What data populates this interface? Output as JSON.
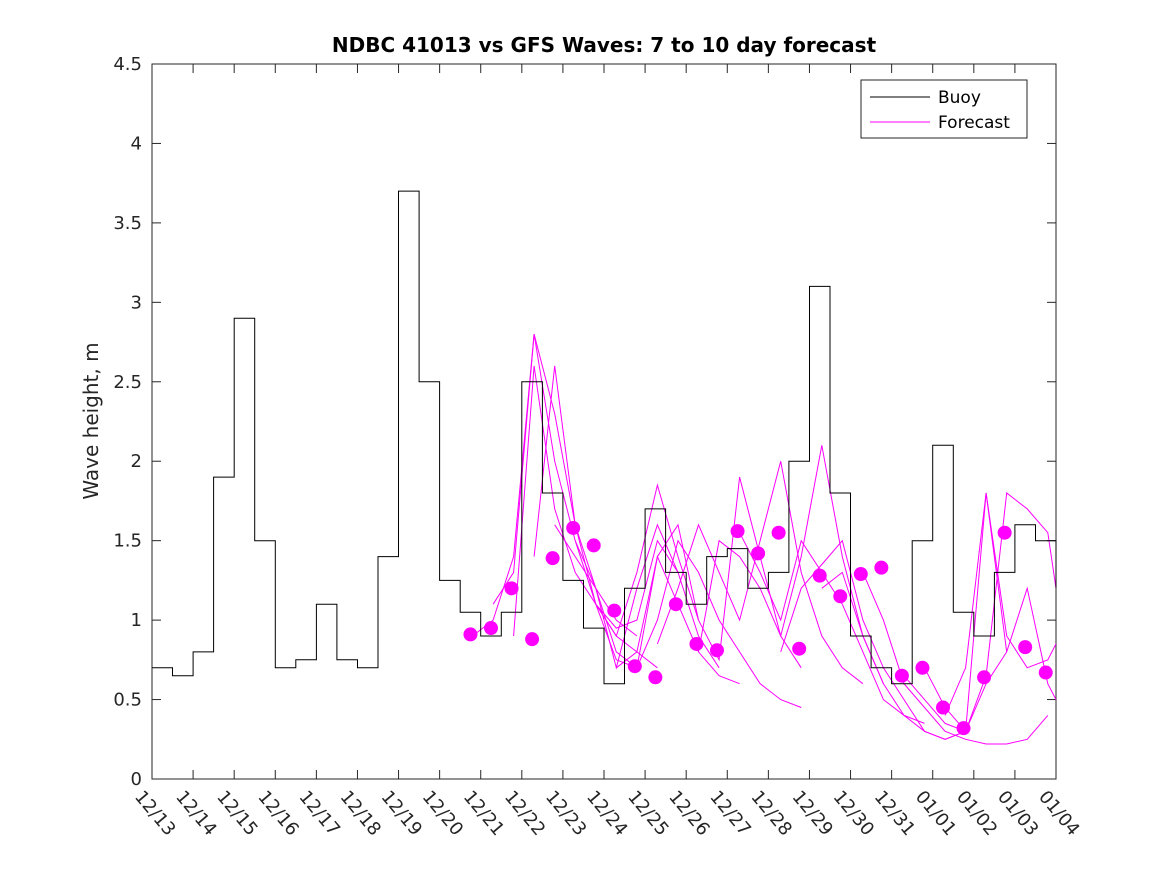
{
  "chart_data": {
    "type": "line",
    "title": "NDBC 41013 vs GFS Waves: 7 to 10 day forecast",
    "xlabel": "",
    "ylabel": "Wave height, m",
    "xlim": [
      0,
      22
    ],
    "ylim": [
      0,
      4.5
    ],
    "yticks": [
      0,
      0.5,
      1,
      1.5,
      2,
      2.5,
      3,
      3.5,
      4,
      4.5
    ],
    "ytick_labels": [
      "0",
      "0.5",
      "1",
      "1.5",
      "2",
      "2.5",
      "3",
      "3.5",
      "4",
      "4.5"
    ],
    "xtick_labels": [
      "12/13",
      "12/14",
      "12/15",
      "12/16",
      "12/17",
      "12/18",
      "12/19",
      "12/20",
      "12/21",
      "12/22",
      "12/23",
      "12/24",
      "12/25",
      "12/26",
      "12/27",
      "12/28",
      "12/29",
      "12/30",
      "12/31",
      "01/01",
      "01/02",
      "01/03",
      "01/04"
    ],
    "legend": {
      "position": "top-right",
      "entries": [
        {
          "label": "Buoy",
          "color": "#000000"
        },
        {
          "label": "Forecast",
          "color": "#ff00ff"
        }
      ]
    },
    "buoy": {
      "name": "Buoy",
      "color": "#000000",
      "x": [
        0,
        0.5,
        1.0,
        1.5,
        2.0,
        2.5,
        3.0,
        3.5,
        4.0,
        4.5,
        5.0,
        5.5,
        6.0,
        6.5,
        7.0,
        7.5,
        8.0,
        8.5,
        9.0,
        9.5,
        10.0,
        10.5,
        11.0,
        11.5,
        12.0,
        12.5,
        13.0,
        13.5,
        14.0,
        14.5,
        15.0,
        15.5,
        16.0,
        16.5,
        17.0,
        17.5,
        18.0,
        18.5,
        19.0,
        19.5,
        20.0,
        20.5,
        21.0,
        21.5,
        22.0
      ],
      "y": [
        0.7,
        0.65,
        0.8,
        1.9,
        2.9,
        1.5,
        0.7,
        0.75,
        1.1,
        0.75,
        0.7,
        1.4,
        3.7,
        2.5,
        1.25,
        1.05,
        0.9,
        1.05,
        2.5,
        1.8,
        1.25,
        0.95,
        0.6,
        1.2,
        1.7,
        1.3,
        1.1,
        1.4,
        1.45,
        1.2,
        1.3,
        2.0,
        3.1,
        1.8,
        0.9,
        0.7,
        0.6,
        1.5,
        2.1,
        1.05,
        0.9,
        1.3,
        1.6,
        1.5,
        1.2
      ]
    },
    "forecast_series": [
      {
        "name": "Forecast 1",
        "x": [
          7.8,
          8.3,
          8.8,
          9.3,
          9.8,
          10.3,
          10.8,
          11.3,
          11.8
        ],
        "y": [
          0.9,
          1.0,
          1.4,
          2.8,
          2.3,
          1.6,
          1.2,
          1.0,
          0.9
        ]
      },
      {
        "name": "Forecast 2",
        "x": [
          8.3,
          8.8,
          9.3,
          9.8,
          10.3,
          10.8,
          11.3,
          11.8,
          12.3
        ],
        "y": [
          1.1,
          1.3,
          2.8,
          2.0,
          1.5,
          1.1,
          0.9,
          0.8,
          0.7
        ]
      },
      {
        "name": "Forecast 3",
        "x": [
          8.8,
          9.3,
          9.8,
          10.3,
          10.8,
          11.3,
          11.8,
          12.3,
          12.8
        ],
        "y": [
          0.9,
          2.6,
          1.7,
          1.3,
          1.1,
          0.95,
          1.0,
          1.5,
          1.3
        ]
      },
      {
        "name": "Forecast 4",
        "x": [
          9.3,
          9.8,
          10.3,
          10.8,
          11.3,
          11.8,
          12.3,
          12.8,
          13.3
        ],
        "y": [
          1.4,
          2.6,
          1.6,
          1.1,
          0.9,
          1.3,
          1.85,
          1.4,
          1.0
        ]
      },
      {
        "name": "Forecast 5",
        "x": [
          9.8,
          10.3,
          10.8,
          11.3,
          11.8,
          12.3,
          12.8,
          13.3,
          13.8
        ],
        "y": [
          1.6,
          1.4,
          1.2,
          0.7,
          1.2,
          1.6,
          1.3,
          0.9,
          0.7
        ]
      },
      {
        "name": "Forecast 6",
        "x": [
          10.3,
          10.8,
          11.3,
          11.8,
          12.3,
          12.8,
          13.3,
          13.8,
          14.3
        ],
        "y": [
          1.5,
          1.2,
          0.8,
          0.7,
          1.4,
          1.1,
          0.8,
          0.65,
          0.6
        ]
      },
      {
        "name": "Forecast 7",
        "x": [
          10.8,
          11.3,
          11.8,
          12.3,
          12.8,
          13.3,
          13.8,
          14.3,
          14.8,
          15.3,
          15.8
        ],
        "y": [
          1.1,
          0.75,
          0.7,
          1.0,
          1.5,
          1.3,
          1.0,
          0.8,
          0.6,
          0.5,
          0.45
        ]
      },
      {
        "name": "Forecast 8",
        "x": [
          11.3,
          11.8,
          12.3,
          12.8,
          13.3,
          13.8,
          14.3,
          14.8,
          15.3,
          15.8
        ],
        "y": [
          0.7,
          0.8,
          1.4,
          1.6,
          1.0,
          0.75,
          1.9,
          1.4,
          0.9,
          0.7
        ]
      },
      {
        "name": "Forecast 9",
        "x": [
          12.3,
          12.8,
          13.3,
          13.8,
          14.3,
          14.8,
          15.3,
          15.8,
          16.3,
          16.8,
          17.3
        ],
        "y": [
          0.85,
          1.2,
          1.6,
          1.3,
          1.0,
          1.5,
          2.0,
          1.3,
          0.9,
          0.7,
          0.6
        ]
      },
      {
        "name": "Forecast 10",
        "x": [
          13.3,
          13.8,
          14.3,
          14.8,
          15.3,
          15.8,
          16.3,
          16.8,
          17.3,
          17.8
        ],
        "y": [
          0.8,
          1.5,
          1.4,
          1.2,
          0.9,
          1.4,
          2.1,
          1.4,
          0.9,
          0.6
        ]
      },
      {
        "name": "Forecast 11",
        "x": [
          14.3,
          14.8,
          15.3,
          15.8,
          16.3,
          16.8,
          17.3,
          17.8,
          18.3,
          18.8
        ],
        "y": [
          1.55,
          1.3,
          1.0,
          1.5,
          1.3,
          1.1,
          0.8,
          0.5,
          0.4,
          0.35
        ]
      },
      {
        "name": "Forecast 12",
        "x": [
          15.3,
          15.8,
          16.3,
          16.8,
          17.3,
          17.8,
          18.3,
          18.8,
          19.3,
          19.8
        ],
        "y": [
          0.8,
          1.2,
          1.35,
          1.5,
          1.0,
          0.7,
          0.5,
          0.3,
          0.25,
          0.3
        ]
      },
      {
        "name": "Forecast 13",
        "x": [
          16.3,
          16.8,
          17.3,
          17.8,
          18.3,
          18.8,
          19.3,
          19.8,
          20.3,
          20.8
        ],
        "y": [
          1.2,
          1.3,
          0.9,
          0.6,
          0.4,
          0.3,
          0.25,
          0.3,
          0.6,
          0.8
        ]
      },
      {
        "name": "Forecast 14",
        "x": [
          17.3,
          17.8,
          18.3,
          18.8,
          19.3,
          19.8,
          20.3,
          20.8,
          21.3,
          21.8
        ],
        "y": [
          1.3,
          1.0,
          0.6,
          0.45,
          0.3,
          0.25,
          0.22,
          0.22,
          0.25,
          0.4
        ]
      },
      {
        "name": "Forecast 15",
        "x": [
          18.3,
          18.8,
          19.3,
          19.8,
          20.3,
          20.8,
          21.3,
          21.8,
          22.0
        ],
        "y": [
          0.65,
          0.5,
          0.35,
          0.3,
          1.8,
          0.9,
          0.7,
          0.75,
          0.85
        ]
      },
      {
        "name": "Forecast 16",
        "x": [
          18.8,
          19.3,
          19.8,
          20.3,
          20.8,
          21.3,
          21.8,
          22.0
        ],
        "y": [
          0.7,
          0.45,
          0.3,
          0.65,
          1.8,
          1.7,
          1.55,
          1.2
        ]
      },
      {
        "name": "Forecast 17",
        "x": [
          19.3,
          19.8,
          20.3,
          20.8,
          21.3,
          21.8,
          22.0
        ],
        "y": [
          0.4,
          0.7,
          1.8,
          0.8,
          1.2,
          0.6,
          0.5
        ]
      }
    ],
    "forecast_markers": {
      "color": "#ff00ff",
      "x": [
        7.75,
        8.25,
        8.75,
        9.25,
        9.75,
        10.25,
        10.75,
        11.25,
        11.75,
        12.25,
        12.75,
        13.25,
        13.75,
        14.25,
        14.75,
        15.25,
        15.75,
        16.25,
        16.75,
        17.25,
        17.75,
        18.25,
        18.75,
        19.25,
        19.75,
        20.25,
        20.75,
        21.25,
        21.75
      ],
      "y": [
        0.91,
        0.95,
        1.2,
        0.88,
        1.39,
        1.58,
        1.47,
        1.06,
        0.71,
        0.64,
        1.1,
        0.85,
        0.81,
        1.56,
        1.42,
        1.55,
        0.82,
        1.28,
        1.15,
        1.29,
        1.33,
        0.65,
        0.7,
        0.45,
        0.32,
        0.64,
        1.55,
        0.83,
        0.67
      ]
    }
  }
}
